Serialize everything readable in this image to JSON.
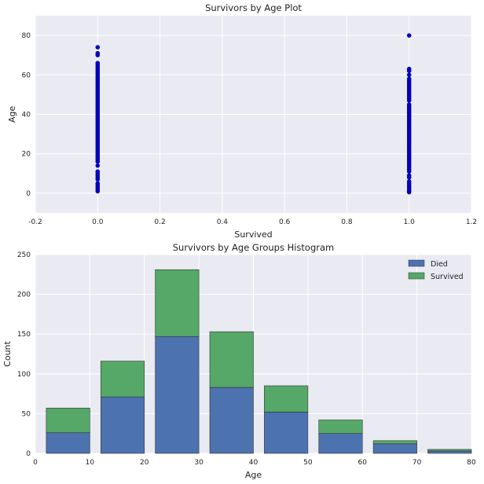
{
  "chart_data": [
    {
      "type": "scatter",
      "title": "Survivors by Age Plot",
      "xlabel": "Survived",
      "ylabel": "Age",
      "xlim": [
        -0.2,
        1.2
      ],
      "ylim": [
        -10,
        90
      ],
      "xticks": [
        "-0.2",
        "0.0",
        "0.2",
        "0.4",
        "0.6",
        "0.8",
        "1.0",
        "1.2"
      ],
      "xtick_values": [
        -0.2,
        0.0,
        0.2,
        0.4,
        0.6,
        0.8,
        1.0,
        1.2
      ],
      "yticks": [
        "0",
        "20",
        "40",
        "60",
        "80"
      ],
      "ytick_values": [
        0,
        20,
        40,
        60,
        80
      ],
      "grid": true,
      "marker_color": "#0000cc",
      "series": [
        {
          "x": 0,
          "ages": [
            1,
            2,
            3,
            4,
            5,
            7,
            8,
            9,
            10,
            11,
            14,
            16,
            17,
            18,
            19,
            20,
            21,
            22,
            23,
            24,
            25,
            26,
            27,
            28,
            29,
            30,
            31,
            32,
            33,
            34,
            35,
            36,
            37,
            38,
            39,
            40,
            41,
            42,
            43,
            44,
            45,
            46,
            47,
            48,
            49,
            50,
            51,
            52,
            53,
            54,
            55,
            56,
            57,
            58,
            59,
            60,
            61,
            62,
            63,
            64,
            65,
            66,
            70,
            71,
            74
          ]
        },
        {
          "x": 1,
          "ages": [
            0.5,
            1,
            2,
            3,
            4,
            5,
            6,
            8,
            9,
            11,
            12,
            13,
            14,
            15,
            16,
            17,
            18,
            19,
            20,
            21,
            22,
            23,
            24,
            25,
            26,
            27,
            28,
            29,
            30,
            31,
            32,
            33,
            34,
            35,
            36,
            37,
            38,
            39,
            40,
            41,
            42,
            43,
            44,
            45,
            47,
            48,
            49,
            50,
            51,
            52,
            53,
            54,
            55,
            56,
            57,
            58,
            60,
            62,
            63,
            80
          ]
        }
      ]
    },
    {
      "type": "bar",
      "stacked": true,
      "title": "Survivors by Age Groups Histogram",
      "xlabel": "Age",
      "ylabel": "Count",
      "xlim": [
        0,
        80
      ],
      "ylim": [
        0,
        250
      ],
      "xticks": [
        "0",
        "10",
        "20",
        "30",
        "40",
        "50",
        "60",
        "70",
        "80"
      ],
      "xtick_values": [
        0,
        10,
        20,
        30,
        40,
        50,
        60,
        70,
        80
      ],
      "yticks": [
        "0",
        "50",
        "100",
        "150",
        "200",
        "250"
      ],
      "ytick_values": [
        0,
        50,
        100,
        150,
        200,
        250
      ],
      "grid": true,
      "legend_position": "top-right",
      "bins": [
        [
          2,
          10
        ],
        [
          12,
          20
        ],
        [
          22,
          30
        ],
        [
          32,
          40
        ],
        [
          42,
          50
        ],
        [
          52,
          60
        ],
        [
          62,
          70
        ],
        [
          72,
          80
        ]
      ],
      "series": [
        {
          "name": "Died",
          "color": "#4c72b0",
          "values": [
            26,
            71,
            147,
            83,
            52,
            25,
            12,
            3
          ]
        },
        {
          "name": "Survived",
          "color": "#55a868",
          "values": [
            31,
            45,
            84,
            70,
            33,
            17,
            4,
            2
          ]
        }
      ]
    }
  ]
}
